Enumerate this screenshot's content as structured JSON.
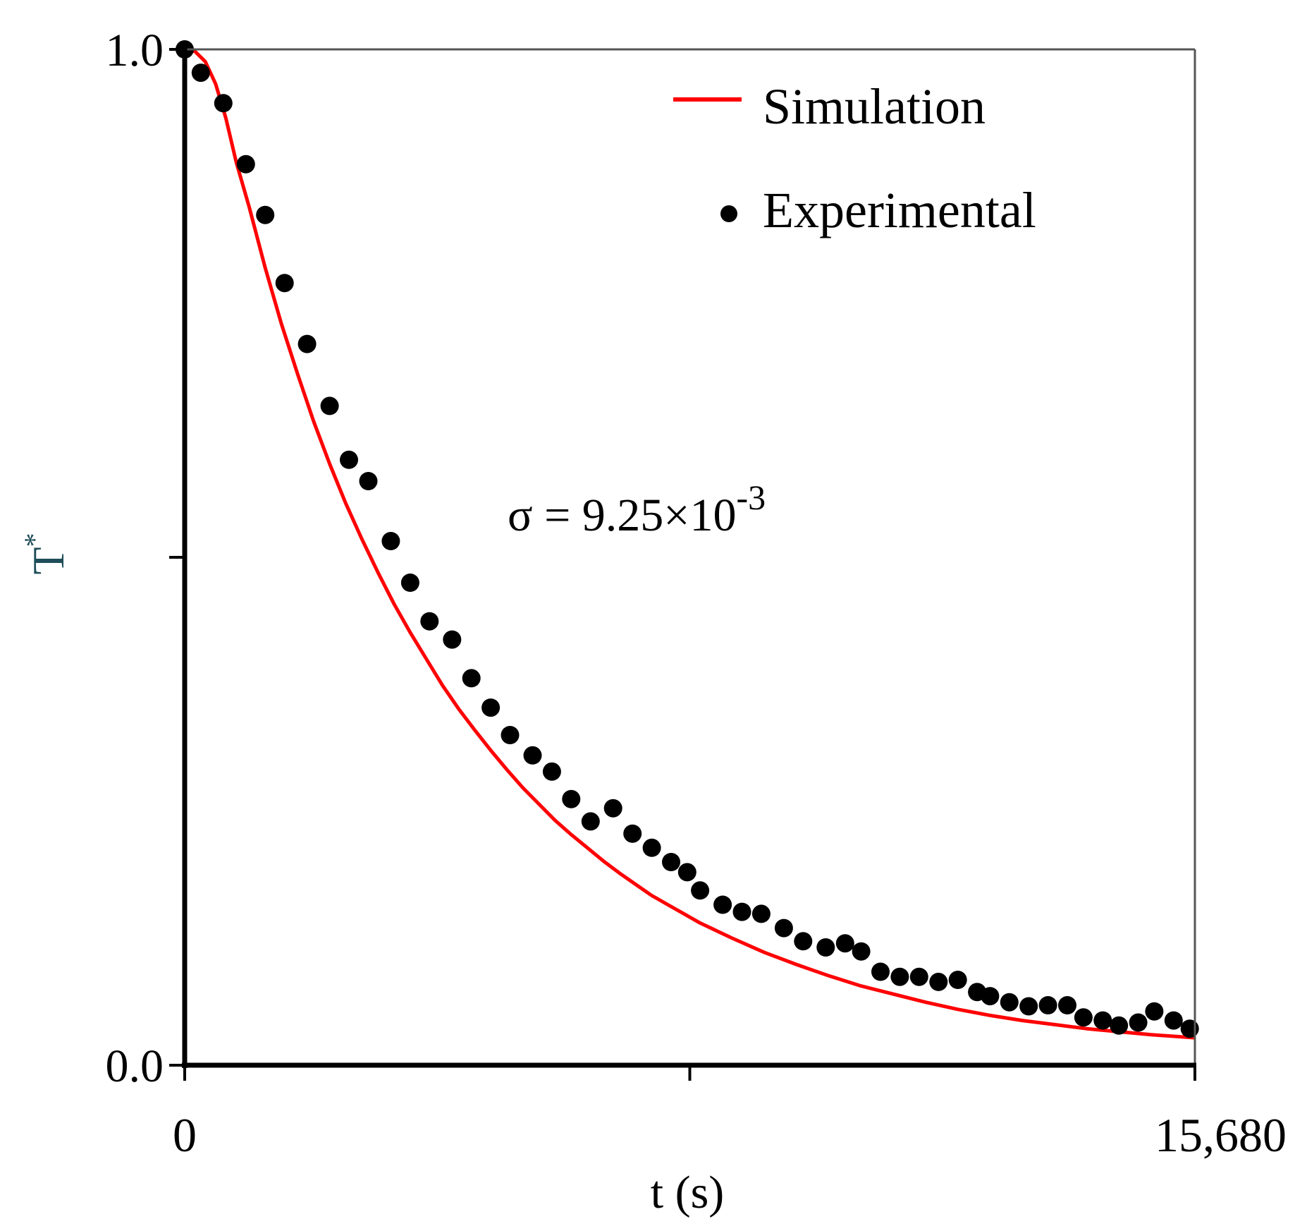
{
  "chart_data": {
    "type": "line",
    "title": "",
    "xlabel": "t (s)",
    "ylabel": "T",
    "ylabel_superscript": "*",
    "xlim": [
      0,
      15680
    ],
    "ylim": [
      0,
      1
    ],
    "x_ticks": [
      0,
      7840,
      15680
    ],
    "x_tick_labels": [
      "0",
      "",
      "15,680"
    ],
    "y_ticks": [
      0,
      0.5,
      1
    ],
    "y_tick_labels": [
      "0.0",
      "",
      "1.0"
    ],
    "grid": false,
    "legend": {
      "position": "top-right",
      "entries": [
        "Simulation",
        "Experimental"
      ]
    },
    "annotation": {
      "text": "σ = 9.25×10",
      "superscript": "-3"
    },
    "colors": {
      "simulation": "#ff0000",
      "experimental": "#000000",
      "axes": "#000000",
      "ylabel": "#1f4e5a"
    },
    "series": [
      {
        "name": "Simulation",
        "style": "line",
        "x": [
          0,
          160,
          320,
          480,
          640,
          800,
          1000,
          1250,
          1500,
          1750,
          2000,
          2250,
          2500,
          2750,
          3000,
          3250,
          3500,
          3750,
          4000,
          4250,
          4500,
          4750,
          5000,
          5250,
          5500,
          5750,
          6000,
          6250,
          6500,
          6750,
          7000,
          7250,
          7500,
          7750,
          8000,
          8500,
          9000,
          9500,
          10000,
          10500,
          11000,
          11500,
          12000,
          12500,
          13000,
          13500,
          14000,
          14500,
          15000,
          15680
        ],
        "y": [
          1.0,
          0.998,
          0.988,
          0.966,
          0.932,
          0.889,
          0.845,
          0.785,
          0.73,
          0.681,
          0.634,
          0.592,
          0.553,
          0.518,
          0.485,
          0.454,
          0.426,
          0.4,
          0.374,
          0.351,
          0.33,
          0.31,
          0.291,
          0.273,
          0.257,
          0.241,
          0.227,
          0.214,
          0.201,
          0.189,
          0.178,
          0.167,
          0.158,
          0.149,
          0.14,
          0.125,
          0.111,
          0.099,
          0.088,
          0.078,
          0.07,
          0.062,
          0.055,
          0.049,
          0.044,
          0.04,
          0.036,
          0.033,
          0.03,
          0.027
        ]
      },
      {
        "name": "Experimental",
        "style": "markers",
        "x": [
          0,
          250,
          600,
          950,
          1250,
          1550,
          1900,
          2250,
          2550,
          2850,
          3200,
          3500,
          3800,
          4150,
          4450,
          4750,
          5050,
          5400,
          5700,
          6000,
          6300,
          6650,
          6950,
          7250,
          7550,
          7800,
          8000,
          8350,
          8650,
          8950,
          9300,
          9600,
          9950,
          10250,
          10500,
          10800,
          11100,
          11400,
          11700,
          12000,
          12300,
          12500,
          12800,
          13100,
          13400,
          13700,
          13950,
          14250,
          14500,
          14800,
          15050,
          15350,
          15600
        ],
        "y": [
          1.0,
          0.977,
          0.947,
          0.887,
          0.837,
          0.77,
          0.71,
          0.649,
          0.596,
          0.575,
          0.516,
          0.475,
          0.437,
          0.419,
          0.381,
          0.352,
          0.325,
          0.305,
          0.289,
          0.262,
          0.24,
          0.253,
          0.228,
          0.214,
          0.2,
          0.19,
          0.172,
          0.158,
          0.151,
          0.149,
          0.135,
          0.122,
          0.116,
          0.12,
          0.112,
          0.092,
          0.087,
          0.087,
          0.082,
          0.084,
          0.072,
          0.068,
          0.062,
          0.058,
          0.059,
          0.059,
          0.047,
          0.044,
          0.039,
          0.042,
          0.053,
          0.044,
          0.036
        ]
      }
    ]
  }
}
